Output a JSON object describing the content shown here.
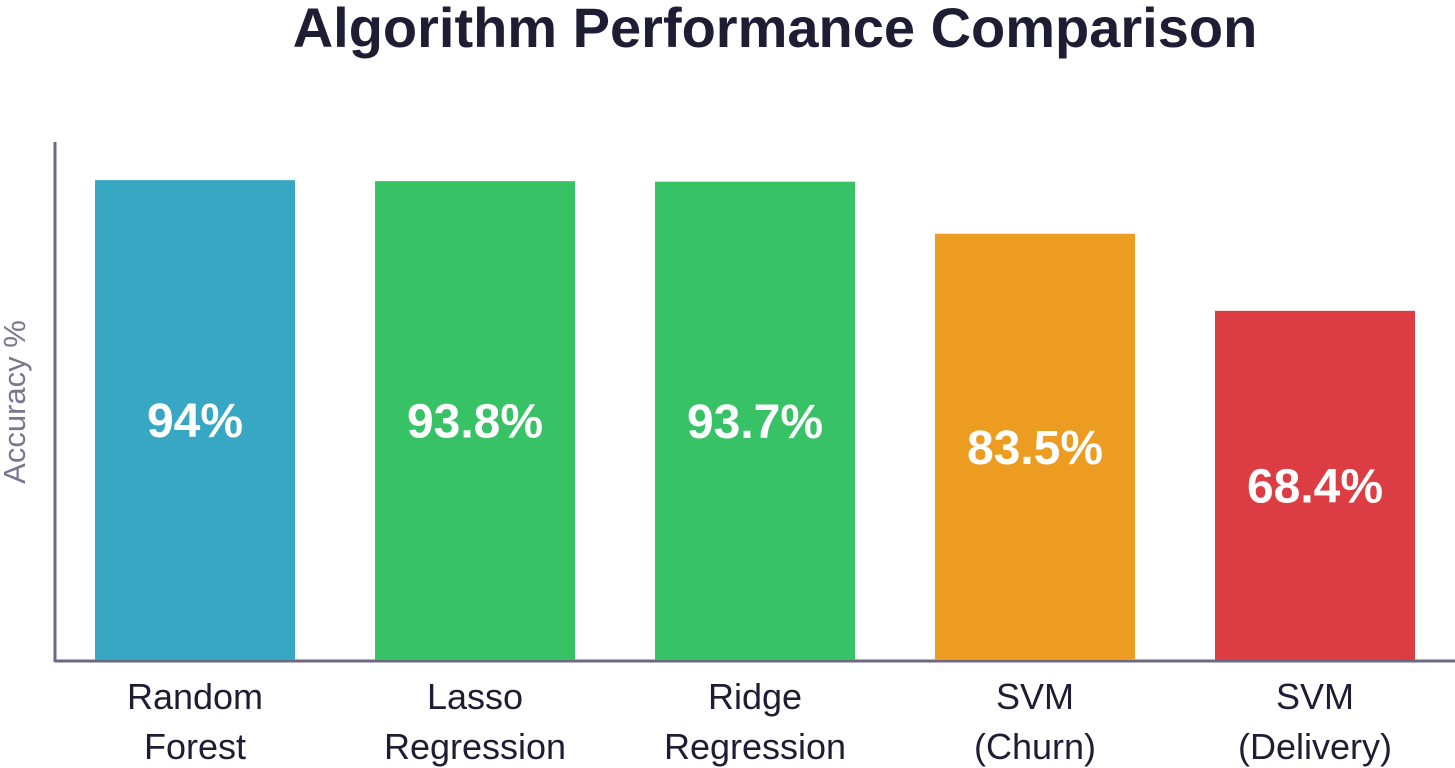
{
  "chart_data": {
    "type": "bar",
    "title": "Algorithm Performance Comparison",
    "xlabel": "",
    "ylabel": "Accuracy %",
    "categories": [
      [
        "Random",
        "Forest"
      ],
      [
        "Lasso",
        "Regression"
      ],
      [
        "Ridge",
        "Regression"
      ],
      [
        "SVM",
        "(Churn)"
      ],
      [
        "SVM",
        "(Delivery)"
      ]
    ],
    "values": [
      94,
      93.8,
      93.7,
      83.5,
      68.4
    ],
    "value_labels": [
      "94%",
      "93.8%",
      "93.7%",
      "83.5%",
      "68.4%"
    ],
    "colors": [
      "#38a7c3",
      "#37c266",
      "#37c266",
      "#ec9c20",
      "#dc3d42"
    ],
    "ylim": [
      0,
      100
    ],
    "grid": false,
    "legend": "none"
  }
}
